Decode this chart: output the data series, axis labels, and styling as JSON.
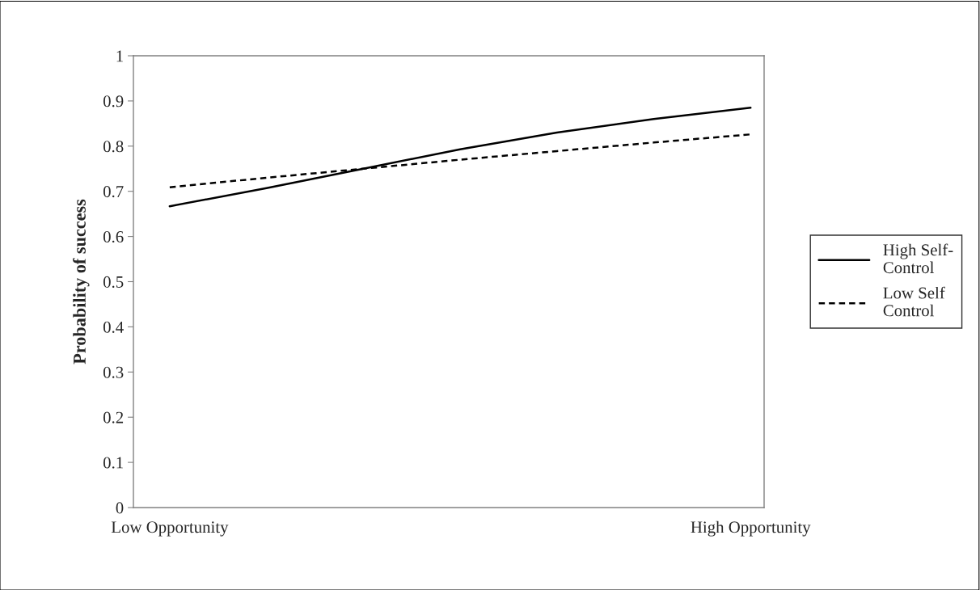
{
  "chart_data": {
    "type": "line",
    "ylabel": "Probability of success",
    "categories": [
      "Low Opportunity",
      null,
      null,
      null,
      null,
      null,
      "High Opportunity"
    ],
    "series": [
      {
        "name": "High Self-Control",
        "color": "#000000",
        "line_style": "solid",
        "values": [
          0.667,
          0.707,
          0.75,
          0.793,
          0.83,
          0.86,
          0.885
        ]
      },
      {
        "name": "Low Self Control",
        "color": "#000000",
        "line_style": "dashed",
        "values": [
          0.709,
          0.73,
          0.75,
          0.77,
          0.789,
          0.808,
          0.826
        ]
      }
    ],
    "ylim": [
      0,
      1
    ],
    "yticks": [
      0,
      0.1,
      0.2,
      0.3,
      0.4,
      0.5,
      0.6,
      0.7,
      0.8,
      0.9,
      1
    ],
    "grid": false,
    "legend": "right",
    "marker": "none"
  }
}
